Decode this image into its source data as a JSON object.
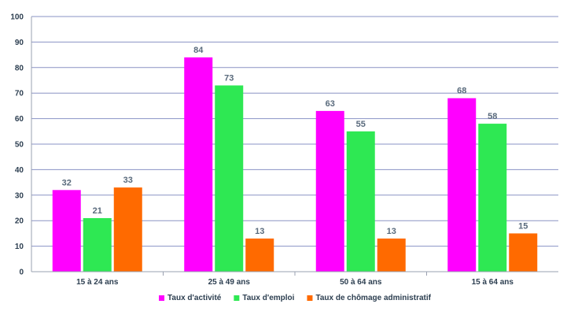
{
  "chart_data": {
    "type": "bar",
    "title": "",
    "xlabel": "",
    "ylabel": "",
    "ylim": [
      0,
      100
    ],
    "yticks": [
      0,
      10,
      20,
      30,
      40,
      50,
      60,
      70,
      80,
      90,
      100
    ],
    "grid": true,
    "legend_position": "bottom",
    "categories": [
      "15 à 24 ans",
      "25 à 49 ans",
      "50 à 64 ans",
      "15 à 64 ans"
    ],
    "series": [
      {
        "name": "Taux d'activité",
        "color": "#ff00ff",
        "values": [
          32,
          84,
          63,
          68
        ]
      },
      {
        "name": "Taux d'emploi",
        "color": "#2ee853",
        "values": [
          21,
          73,
          55,
          58
        ]
      },
      {
        "name": "Taux de chômage administratif",
        "color": "#ff6a00",
        "values": [
          33,
          13,
          13,
          15
        ]
      }
    ]
  }
}
